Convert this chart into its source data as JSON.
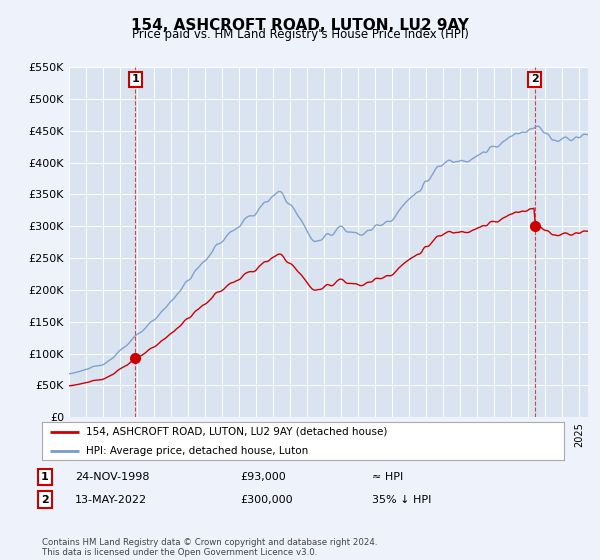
{
  "title": "154, ASHCROFT ROAD, LUTON, LU2 9AY",
  "subtitle": "Price paid vs. HM Land Registry's House Price Index (HPI)",
  "legend_line1": "154, ASHCROFT ROAD, LUTON, LU2 9AY (detached house)",
  "legend_line2": "HPI: Average price, detached house, Luton",
  "annotation1_date": "24-NOV-1998",
  "annotation1_price": "£93,000",
  "annotation1_hpi": "≈ HPI",
  "annotation2_date": "13-MAY-2022",
  "annotation2_price": "£300,000",
  "annotation2_hpi": "35% ↓ HPI",
  "footer": "Contains HM Land Registry data © Crown copyright and database right 2024.\nThis data is licensed under the Open Government Licence v3.0.",
  "ylim": [
    0,
    550000
  ],
  "yticks": [
    0,
    50000,
    100000,
    150000,
    200000,
    250000,
    300000,
    350000,
    400000,
    450000,
    500000,
    550000
  ],
  "xlim": [
    1995.0,
    2025.5
  ],
  "background_color": "#eef2fa",
  "plot_bg_color": "#dae4f0",
  "grid_color": "#ffffff",
  "line_color_red": "#cc0000",
  "line_color_blue": "#7799cc",
  "sale1_x": 1998.9,
  "sale1_y": 93000,
  "sale2_x": 2022.37,
  "sale2_y": 300000
}
